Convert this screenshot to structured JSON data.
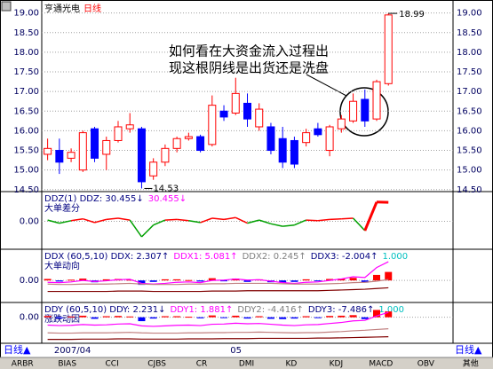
{
  "chart_data": [
    {
      "type": "candlestick",
      "stock_name": "亨通光电",
      "period": "日线",
      "categories": [
        null,
        "2007/04",
        null,
        null,
        null,
        null,
        null,
        null,
        null,
        null,
        null,
        null,
        null,
        null,
        null,
        null,
        "05",
        null,
        null,
        null,
        null,
        null,
        null,
        null,
        null,
        null,
        null,
        null,
        null,
        null
      ],
      "open": [
        15.4,
        15.5,
        15.3,
        15.0,
        16.05,
        15.4,
        15.75,
        16.05,
        16.05,
        14.85,
        15.2,
        15.55,
        15.8,
        15.85,
        15.65,
        16.5,
        16.45,
        16.7,
        16.1,
        16.1,
        15.8,
        15.75,
        15.7,
        16.05,
        15.5,
        16.05,
        16.25,
        16.8,
        16.3,
        17.2
      ],
      "close": [
        15.55,
        15.2,
        15.45,
        15.95,
        15.3,
        15.75,
        16.1,
        16.15,
        14.7,
        15.2,
        15.55,
        15.8,
        15.85,
        15.5,
        16.65,
        16.35,
        16.95,
        16.3,
        16.55,
        15.5,
        15.2,
        15.15,
        15.95,
        15.9,
        16.1,
        16.3,
        16.75,
        16.25,
        17.25,
        18.95
      ],
      "high": [
        15.8,
        15.8,
        15.55,
        16.0,
        16.1,
        15.85,
        16.25,
        16.45,
        16.1,
        15.3,
        15.65,
        15.85,
        15.95,
        15.9,
        16.9,
        16.65,
        17.35,
        16.95,
        16.7,
        16.2,
        16.1,
        15.85,
        16.05,
        16.2,
        16.15,
        16.4,
        16.95,
        17.05,
        17.3,
        18.99
      ],
      "low": [
        15.25,
        14.9,
        15.2,
        14.95,
        15.2,
        15.0,
        15.7,
        15.95,
        14.53,
        14.75,
        15.1,
        15.45,
        15.75,
        15.45,
        15.6,
        16.25,
        16.4,
        16.1,
        16.0,
        15.4,
        15.05,
        15.05,
        15.6,
        15.85,
        15.35,
        15.95,
        16.2,
        16.1,
        16.25,
        17.15
      ],
      "ylim": [
        14.45,
        19.15
      ],
      "yticks": [
        {
          "value": 19,
          "label": "19.00"
        },
        {
          "value": 18.5,
          "label": "18.50"
        },
        {
          "value": 18,
          "label": "18.00"
        },
        {
          "value": 17.5,
          "label": "17.50"
        },
        {
          "value": 17,
          "label": "17.00"
        },
        {
          "value": 16.5,
          "label": "16.50"
        },
        {
          "value": 16,
          "label": "16.00"
        },
        {
          "value": 15.5,
          "label": "15.50"
        },
        {
          "value": 15,
          "label": "15.00"
        },
        {
          "value": 14.5,
          "label": "14.50"
        }
      ],
      "grid": true,
      "up_color": "#ff0000",
      "down_color": "#0000ff",
      "annotation": [
        "如何看在大资金流入过程出",
        "现这根阴线是出货还是洗盘"
      ]
    },
    {
      "type": "line",
      "legend": [
        {
          "text": "DDZ(1) DDZ: 30.455↓",
          "color": "#000080"
        },
        {
          "text": "30.455↓",
          "color": "#ff00ff"
        }
      ],
      "subtitle": "大单差分",
      "values": [
        2,
        -3,
        1,
        4,
        -2,
        3,
        5,
        2,
        -25,
        -6,
        2,
        3,
        1,
        -2,
        5,
        3,
        6,
        -3,
        2,
        -4,
        -8,
        -6,
        2,
        1,
        3,
        4,
        5,
        -15,
        31,
        30.455
      ],
      "ylim": [
        -45,
        45
      ],
      "yticks": [
        {
          "value": 0,
          "label": "0.00"
        }
      ],
      "up_color": "#ff0000",
      "down_color": "#00a000"
    },
    {
      "type": "combo",
      "legend": [
        {
          "text": "DDX (60,5,10) DDX: 2.307↑",
          "color": "#000080"
        },
        {
          "text": "DDX1: 5.081↑",
          "color": "#ff00ff"
        },
        {
          "text": "DDX2: 0.245↑",
          "color": "#808080"
        },
        {
          "text": "DDX3: -2.004↑",
          "color": "#000080"
        },
        {
          "text": "1.000",
          "color": "#00c0c0"
        }
      ],
      "subtitle": "大单动向",
      "bars": {
        "values": [
          0.4,
          -0.3,
          0.2,
          0.5,
          -0.5,
          0.3,
          0.4,
          0.2,
          -1.2,
          -0.4,
          0.3,
          0.3,
          0.1,
          -0.3,
          0.6,
          -0.2,
          0.5,
          -0.4,
          0.3,
          -0.5,
          -0.6,
          -0.4,
          0.3,
          -0.1,
          0.4,
          0.5,
          0.7,
          -0.6,
          1.5,
          2.307
        ],
        "up_color": "#ff0000",
        "down_color": "#0000ff"
      },
      "series": [
        {
          "color": "#ff00ff",
          "values": [
            -0.5,
            -0.6,
            -0.4,
            0,
            -0.3,
            -0.1,
            0.2,
            0.3,
            -0.8,
            -1,
            -0.8,
            -0.5,
            -0.4,
            -0.6,
            0,
            0.1,
            0.4,
            0.1,
            0.2,
            -0.2,
            -0.6,
            -0.8,
            -0.5,
            -0.4,
            0,
            0.4,
            1,
            0.8,
            3.5,
            5.081
          ]
        },
        {
          "color": "#c08080",
          "values": [
            -1,
            -1.1,
            -1.1,
            -1,
            -1,
            -1,
            -0.9,
            -0.8,
            -1,
            -1.1,
            -1.1,
            -1.1,
            -1,
            -1,
            -0.9,
            -0.9,
            -0.8,
            -0.8,
            -0.8,
            -0.8,
            -0.9,
            -1,
            -1,
            -1,
            -0.9,
            -0.8,
            -0.6,
            -0.5,
            -0.2,
            0.245
          ]
        },
        {
          "color": "#800000",
          "values": [
            -3,
            -3,
            -3,
            -3,
            -3,
            -3,
            -2.9,
            -2.9,
            -2.9,
            -3,
            -3,
            -3,
            -3,
            -3,
            -2.9,
            -2.9,
            -2.9,
            -2.8,
            -2.8,
            -2.8,
            -2.8,
            -2.8,
            -2.8,
            -2.8,
            -2.7,
            -2.6,
            -2.5,
            -2.4,
            -2.2,
            -2.004
          ]
        }
      ],
      "ylim": [
        -6,
        8
      ],
      "yticks": [
        {
          "value": 0,
          "label": "0.00"
        }
      ]
    },
    {
      "type": "combo",
      "legend": [
        {
          "text": "DDY (60,5,10) DDY: 2.231↓",
          "color": "#000080"
        },
        {
          "text": "DDY1: 1.881↑",
          "color": "#ff00ff"
        },
        {
          "text": "DDY2: -4.416↑",
          "color": "#808080"
        },
        {
          "text": "DDY3: -7.486↑",
          "color": "#000080"
        },
        {
          "text": "1.000",
          "color": "#00c0c0"
        }
      ],
      "subtitle": "涨跌动因",
      "bars": {
        "values": [
          0.5,
          -0.4,
          0.3,
          0.6,
          -0.6,
          0.4,
          0.5,
          0.3,
          -1.5,
          -0.5,
          0.4,
          0.4,
          0.2,
          -0.4,
          0.7,
          -0.3,
          0.6,
          -0.5,
          0.4,
          -0.6,
          -0.7,
          -0.5,
          0.4,
          -0.2,
          0.5,
          0.6,
          0.8,
          -0.7,
          2.8,
          2.231
        ],
        "up_color": "#ff0000",
        "down_color": "#0000ff"
      },
      "series": [
        {
          "color": "#ff00ff",
          "values": [
            -3,
            -3.2,
            -3.1,
            -2.8,
            -3,
            -2.9,
            -2.6,
            -2.5,
            -3.3,
            -3.5,
            -3.3,
            -3.1,
            -3,
            -3.2,
            -2.7,
            -2.6,
            -2.3,
            -2.5,
            -2.4,
            -2.7,
            -3,
            -3.2,
            -2.9,
            -2.8,
            -2.4,
            -2,
            -1.4,
            -1.2,
            0.5,
            1.881
          ]
        },
        {
          "color": "#c08080",
          "values": [
            -6,
            -6.1,
            -6.1,
            -6,
            -6,
            -6,
            -5.9,
            -5.8,
            -6,
            -6.1,
            -6.1,
            -6.1,
            -6,
            -6,
            -5.9,
            -5.9,
            -5.8,
            -5.8,
            -5.7,
            -5.8,
            -5.9,
            -6,
            -5.9,
            -5.9,
            -5.7,
            -5.5,
            -5.2,
            -5,
            -4.7,
            -4.416
          ]
        },
        {
          "color": "#800000",
          "values": [
            -8.5,
            -8.5,
            -8.5,
            -8.4,
            -8.4,
            -8.4,
            -8.3,
            -8.3,
            -8.4,
            -8.4,
            -8.4,
            -8.4,
            -8.3,
            -8.3,
            -8.3,
            -8.2,
            -8.2,
            -8.2,
            -8.1,
            -8.1,
            -8.1,
            -8.1,
            -8.1,
            -8,
            -8,
            -7.9,
            -7.8,
            -7.7,
            -7.6,
            -7.486
          ]
        }
      ],
      "ylim": [
        -10,
        5
      ],
      "yticks": [
        {
          "value": 0,
          "label": "0.00"
        }
      ]
    }
  ],
  "footer": {
    "left": "日线▲",
    "right": "日线▲",
    "tabs": [
      "ARBR",
      "BIAS",
      "CCI",
      "CJBS",
      "CR",
      "DMI",
      "KD",
      "KDJ",
      "MACD",
      "OBV",
      "其他"
    ]
  }
}
